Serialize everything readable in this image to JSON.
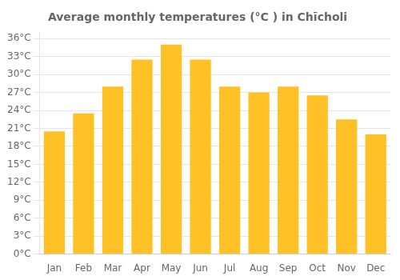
{
  "chart_data": {
    "type": "bar",
    "title": "Average monthly temperatures (°C ) in Chīcholi",
    "categories": [
      "Jan",
      "Feb",
      "Mar",
      "Apr",
      "May",
      "Jun",
      "Jul",
      "Aug",
      "Sep",
      "Oct",
      "Nov",
      "Dec"
    ],
    "values": [
      20.5,
      23.5,
      28.0,
      32.5,
      35.0,
      32.5,
      28.0,
      27.0,
      28.0,
      26.5,
      22.5,
      20.0
    ],
    "color": "#FFC125",
    "ylim": [
      0,
      37
    ],
    "yticks": [
      {
        "value": 0,
        "label": "0°C"
      },
      {
        "value": 3,
        "label": "3°C"
      },
      {
        "value": 6,
        "label": "6°C"
      },
      {
        "value": 9,
        "label": "9°C"
      },
      {
        "value": 12,
        "label": "12°C"
      },
      {
        "value": 15,
        "label": "15°C"
      },
      {
        "value": 18,
        "label": "18°C"
      },
      {
        "value": 21,
        "label": "21°C"
      },
      {
        "value": 24,
        "label": "24°C"
      },
      {
        "value": 27,
        "label": "27°C"
      },
      {
        "value": 30,
        "label": "30°C"
      },
      {
        "value": 33,
        "label": "33°C"
      },
      {
        "value": 36,
        "label": "36°C"
      }
    ],
    "grid": true
  }
}
